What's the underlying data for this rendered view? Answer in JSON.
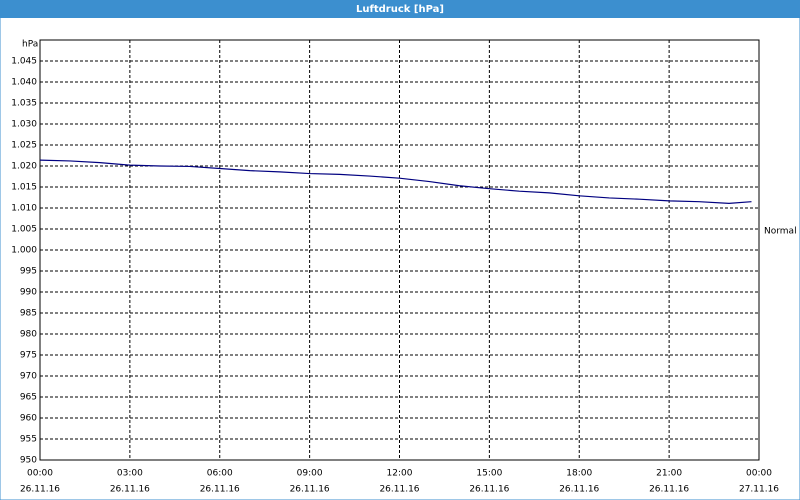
{
  "window_title": "Luftdruck [hPa]",
  "chart_data": {
    "type": "line",
    "y_label": "hPa",
    "x": [
      0,
      1,
      2,
      3,
      4,
      5,
      6,
      7,
      8,
      9,
      10,
      11,
      12,
      13,
      14,
      15,
      16,
      17,
      18,
      19,
      20,
      21,
      22,
      23,
      23.75
    ],
    "series": [
      {
        "name": "Luftdruck",
        "color": "#000080",
        "values": [
          1021.4,
          1021.2,
          1020.8,
          1020.2,
          1020.0,
          1019.9,
          1019.4,
          1018.9,
          1018.6,
          1018.2,
          1018.0,
          1017.6,
          1017.1,
          1016.3,
          1015.3,
          1014.6,
          1014.0,
          1013.6,
          1012.9,
          1012.4,
          1012.1,
          1011.7,
          1011.5,
          1011.1,
          1011.5
        ]
      }
    ],
    "xlim": [
      0,
      24
    ],
    "xticks": [
      {
        "value": 0,
        "label": "00:00",
        "date": "26.11.16"
      },
      {
        "value": 3,
        "label": "03:00",
        "date": "26.11.16"
      },
      {
        "value": 6,
        "label": "06:00",
        "date": "26.11.16"
      },
      {
        "value": 9,
        "label": "09:00",
        "date": "26.11.16"
      },
      {
        "value": 12,
        "label": "12:00",
        "date": "26.11.16"
      },
      {
        "value": 15,
        "label": "15:00",
        "date": "26.11.16"
      },
      {
        "value": 18,
        "label": "18:00",
        "date": "26.11.16"
      },
      {
        "value": 21,
        "label": "21:00",
        "date": "26.11.16"
      },
      {
        "value": 24,
        "label": "00:00",
        "date": "27.11.16"
      }
    ],
    "ylim": [
      950,
      1050
    ],
    "yticks": [
      950,
      955,
      960,
      965,
      970,
      975,
      980,
      985,
      990,
      995,
      {
        "value": 1000,
        "label": "1.000"
      },
      {
        "value": 1005,
        "label": "1.005"
      },
      {
        "value": 1010,
        "label": "1.010"
      },
      {
        "value": 1015,
        "label": "1.015"
      },
      {
        "value": 1020,
        "label": "1.020"
      },
      {
        "value": 1025,
        "label": "1.025"
      },
      {
        "value": 1030,
        "label": "1.030"
      },
      {
        "value": 1035,
        "label": "1.035"
      },
      {
        "value": 1040,
        "label": "1.040"
      },
      {
        "value": 1045,
        "label": "1.045"
      }
    ],
    "grid": true,
    "annotations": [
      {
        "text": "Normal",
        "value": 1004.5
      }
    ]
  }
}
